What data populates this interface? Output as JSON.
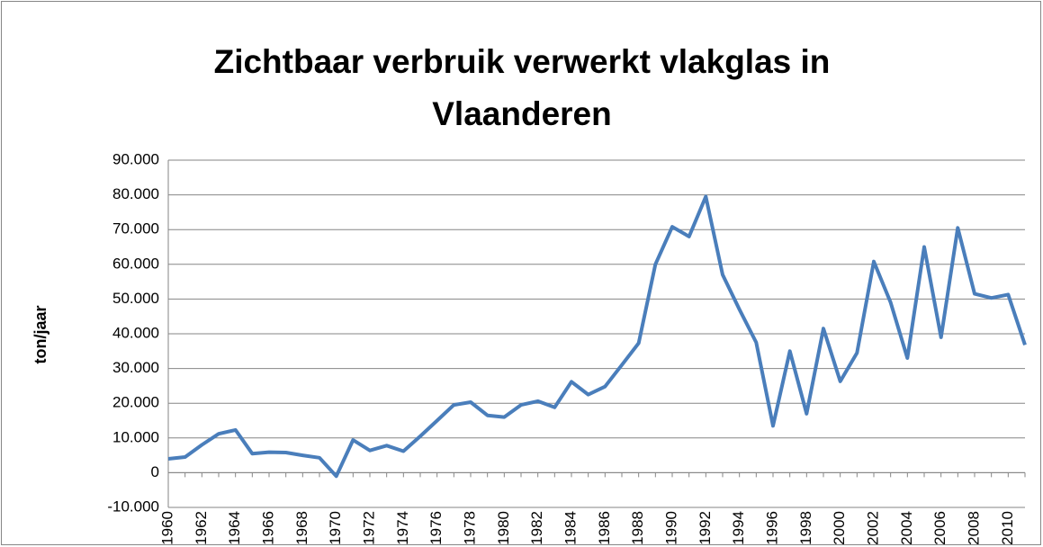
{
  "chart_data": {
    "type": "line",
    "title": "Zichtbaar verbruik verwerkt vlakglas in Vlaanderen",
    "y_label": "ton/jaar",
    "categories": [
      "1960",
      null,
      "1962",
      null,
      "1964",
      null,
      "1966",
      null,
      "1968",
      null,
      "1970",
      null,
      "1972",
      null,
      "1974",
      null,
      "1976",
      null,
      "1978",
      null,
      "1980",
      null,
      "1982",
      null,
      "1984",
      null,
      "1986",
      null,
      "1988",
      null,
      "1990",
      null,
      "1992",
      null,
      "1994",
      null,
      "1996",
      null,
      "1998",
      null,
      "2000",
      null,
      "2002",
      null,
      "2004",
      null,
      "2006",
      null,
      "2008",
      null,
      "2010",
      null
    ],
    "values": [
      4000,
      4500,
      8000,
      11200,
      12300,
      5500,
      5900,
      5800,
      5000,
      4300,
      -1000,
      9400,
      6400,
      7800,
      6200,
      10500,
      15000,
      19500,
      20300,
      16500,
      16000,
      19500,
      20600,
      18800,
      26200,
      22500,
      24800,
      31000,
      37300,
      60000,
      70800,
      68000,
      79500,
      57000,
      47000,
      37500,
      13500,
      35000,
      17000,
      41500,
      26300,
      34500,
      60800,
      49000,
      33000,
      65000,
      39000,
      70500,
      51500,
      50300,
      51300,
      36800
    ],
    "color": "#4a7ebb",
    "ylim": [
      -10000,
      90000
    ],
    "yticks": [
      {
        "value": -10000,
        "label": "-10.000"
      },
      0,
      {
        "value": 10000,
        "label": "10.000"
      },
      {
        "value": 20000,
        "label": "20.000"
      },
      {
        "value": 30000,
        "label": "30.000"
      },
      {
        "value": 40000,
        "label": "40.000"
      },
      {
        "value": 50000,
        "label": "50.000"
      },
      {
        "value": 60000,
        "label": "60.000"
      },
      {
        "value": 70000,
        "label": "70.000"
      },
      {
        "value": 80000,
        "label": "80.000"
      },
      {
        "value": 90000,
        "label": "90.000"
      }
    ],
    "grid": true
  }
}
